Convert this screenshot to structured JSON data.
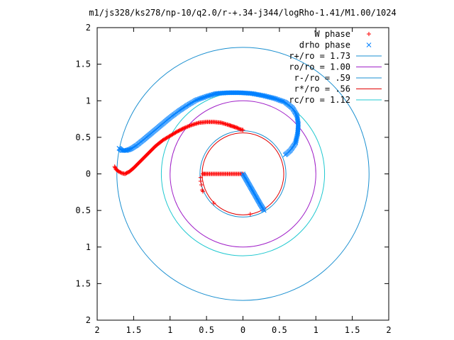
{
  "chart_data": {
    "type": "scatter",
    "title": "m1/js328/ks278/np-10/q2.0/r-+.34-j344/logRho-1.41/M1.00/1024",
    "xlabel": "",
    "ylabel": "",
    "xlim": [
      -2,
      2
    ],
    "ylim": [
      -2,
      2
    ],
    "grid": false,
    "legend_position": "top-right",
    "xticks": [
      -2,
      -1.5,
      -1,
      -0.5,
      0,
      0.5,
      1,
      1.5,
      2
    ],
    "yticks": [
      -2,
      -1.5,
      -1,
      -0.5,
      0,
      0.5,
      1,
      1.5,
      2
    ],
    "xtick_labels": [
      "2",
      "1.5",
      "1",
      "0.5",
      "0",
      "0.5",
      "1",
      "1.5",
      "2"
    ],
    "ytick_labels": [
      "2",
      "1.5",
      "1",
      "0.5",
      "0",
      "0.5",
      "1",
      "1.5",
      "2"
    ],
    "series": [
      {
        "name": "W phase",
        "marker": "+",
        "color": "#ff0000",
        "path": [
          [
            -1.76,
            0.1
          ],
          [
            -1.74,
            0.06
          ],
          [
            -1.7,
            0.03
          ],
          [
            -1.66,
            0.01
          ],
          [
            -1.62,
            0.0
          ],
          [
            -1.56,
            0.03
          ],
          [
            -1.5,
            0.08
          ],
          [
            -1.44,
            0.14
          ],
          [
            -1.36,
            0.22
          ],
          [
            -1.28,
            0.3
          ],
          [
            -1.2,
            0.38
          ],
          [
            -1.1,
            0.46
          ],
          [
            -1.0,
            0.52
          ],
          [
            -0.9,
            0.58
          ],
          [
            -0.8,
            0.63
          ],
          [
            -0.7,
            0.67
          ],
          [
            -0.6,
            0.7
          ],
          [
            -0.5,
            0.71
          ],
          [
            -0.4,
            0.71
          ],
          [
            -0.3,
            0.7
          ],
          [
            -0.2,
            0.67
          ],
          [
            -0.14,
            0.65
          ],
          [
            -0.08,
            0.63
          ],
          [
            -0.04,
            0.61
          ],
          [
            0.0,
            0.6
          ]
        ],
        "path2": [
          [
            -0.55,
            0.0
          ],
          [
            -0.5,
            0.0
          ],
          [
            -0.4,
            0.0
          ],
          [
            -0.3,
            0.0
          ],
          [
            -0.2,
            0.0
          ],
          [
            -0.1,
            0.0
          ],
          [
            0.0,
            0.0
          ]
        ],
        "sparse": [
          [
            -0.58,
            -0.05
          ],
          [
            -0.58,
            -0.1
          ],
          [
            -0.57,
            -0.15
          ],
          [
            -0.56,
            -0.22
          ],
          [
            -0.55,
            -0.24
          ],
          [
            -0.4,
            -0.4
          ],
          [
            0.1,
            -0.55
          ]
        ]
      },
      {
        "name": "drho phase",
        "marker": "x",
        "color": "#0080ff",
        "path": [
          [
            -1.7,
            0.35
          ],
          [
            -1.66,
            0.32
          ],
          [
            -1.6,
            0.32
          ],
          [
            -1.54,
            0.34
          ],
          [
            -1.46,
            0.39
          ],
          [
            -1.36,
            0.47
          ],
          [
            -1.24,
            0.57
          ],
          [
            -1.12,
            0.67
          ],
          [
            -1.0,
            0.77
          ],
          [
            -0.88,
            0.86
          ],
          [
            -0.76,
            0.94
          ],
          [
            -0.64,
            1.01
          ],
          [
            -0.5,
            1.06
          ],
          [
            -0.36,
            1.1
          ],
          [
            -0.2,
            1.11
          ],
          [
            -0.04,
            1.11
          ],
          [
            0.12,
            1.1
          ],
          [
            0.28,
            1.07
          ],
          [
            0.44,
            1.03
          ],
          [
            0.58,
            0.98
          ],
          [
            0.68,
            0.9
          ],
          [
            0.74,
            0.8
          ],
          [
            0.76,
            0.68
          ],
          [
            0.75,
            0.55
          ],
          [
            0.72,
            0.42
          ],
          [
            0.65,
            0.32
          ],
          [
            0.58,
            0.26
          ]
        ],
        "path2": [
          [
            0.0,
            0.0
          ],
          [
            0.04,
            -0.07
          ],
          [
            0.08,
            -0.14
          ],
          [
            0.12,
            -0.21
          ],
          [
            0.16,
            -0.28
          ],
          [
            0.2,
            -0.35
          ],
          [
            0.24,
            -0.42
          ],
          [
            0.29,
            -0.5
          ]
        ]
      }
    ],
    "circles": [
      {
        "name": "r+/ro = 1.73",
        "r": 1.73,
        "color": "#1a8fd0"
      },
      {
        "name": "ro/ro = 1.00",
        "r": 1.0,
        "color": "#a020c8"
      },
      {
        "name": "r-/ro = .59",
        "r": 0.59,
        "color": "#1a8fd0"
      },
      {
        "name": "r*/ro = .56",
        "r": 0.56,
        "color": "#e00000"
      },
      {
        "name": "rc/ro = 1.12",
        "r": 1.12,
        "color": "#20c8d0"
      }
    ]
  }
}
